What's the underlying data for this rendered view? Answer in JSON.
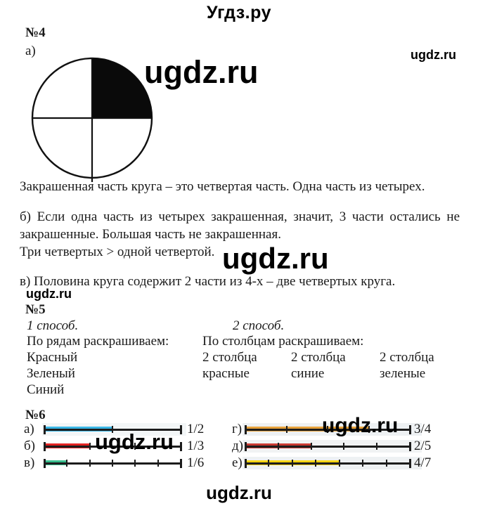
{
  "header": {
    "title": "Угдз.ру"
  },
  "watermark": {
    "text": "ugdz.ru"
  },
  "footer": {
    "text": "ugdz.ru"
  },
  "task4": {
    "number": "№4",
    "item_a_label": "а)",
    "circle": {
      "shape": "circle-divided-in-quarters",
      "filled_quarter": "top-right",
      "filled_fraction": "1/4"
    },
    "caption": "Закрашенная часть круга – это четвертая часть. Одна часть из четырех.",
    "item_b_line1": "б) Если одна часть из четырех закрашенная, значит, 3 части остались не",
    "item_b_line2": "закрашенные. Большая часть не закрашенная.",
    "item_b_line3": "Три четвертых > одной четвертой.",
    "item_v": "в) Половина круга содержит 2 части из 4-х – две четвертых круга."
  },
  "task5": {
    "number": "№5",
    "method1": {
      "title": "1 способ.",
      "subtitle": "По рядам раскрашиваем:",
      "items": [
        "Красный",
        "Зеленый",
        "Синий"
      ]
    },
    "method2": {
      "title": "2 способ.",
      "subtitle": "По столбцам раскрашиваем:",
      "cols": [
        {
          "count": "2 столбца",
          "color": "красные"
        },
        {
          "count": "2 столбца",
          "color": "синие"
        },
        {
          "count": "2 столбца",
          "color": "зеленые"
        }
      ]
    }
  },
  "task6": {
    "number": "№6",
    "rows": [
      {
        "label": "а)",
        "fraction": "1/2",
        "numerator": 1,
        "denominator": 2,
        "color": "#3ab7e6",
        "column": "left"
      },
      {
        "label": "б)",
        "fraction": "1/3",
        "numerator": 1,
        "denominator": 3,
        "color": "#e32322",
        "column": "left"
      },
      {
        "label": "в)",
        "fraction": "1/6",
        "numerator": 1,
        "denominator": 6,
        "color": "#38bd8d",
        "column": "left"
      },
      {
        "label": "г)",
        "fraction": "3/4",
        "numerator": 3,
        "denominator": 4,
        "color": "#e7a23b",
        "column": "right"
      },
      {
        "label": "д)",
        "fraction": "2/5",
        "numerator": 2,
        "denominator": 5,
        "color": "#ca3a33",
        "column": "right"
      },
      {
        "label": "е)",
        "fraction": "4/7",
        "numerator": 4,
        "denominator": 7,
        "color": "#f6d411",
        "column": "right"
      }
    ]
  }
}
